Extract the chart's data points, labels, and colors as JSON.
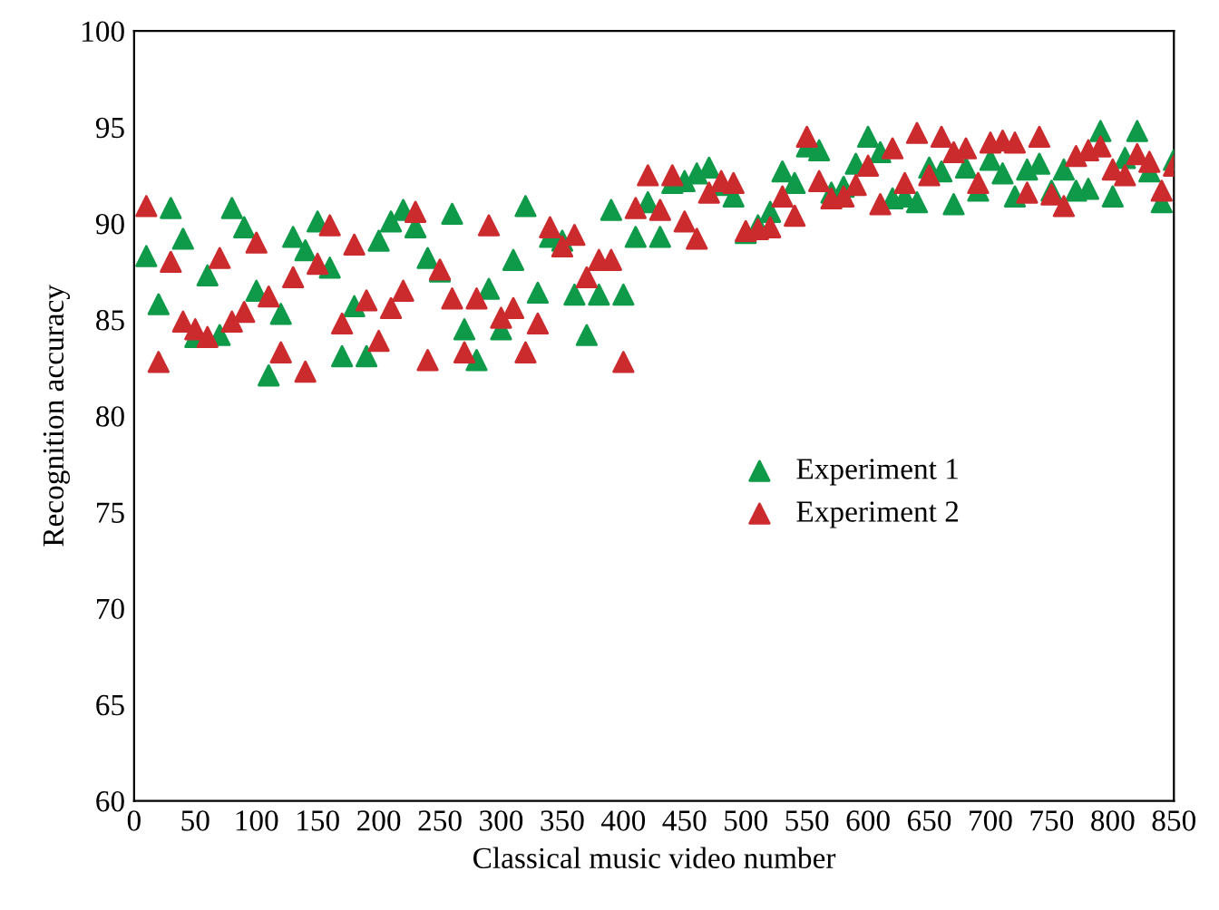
{
  "chart_data": {
    "type": "scatter",
    "xlabel": "Classical music video number",
    "ylabel": "Recognition accuracy",
    "x": [
      10,
      20,
      30,
      40,
      50,
      60,
      70,
      80,
      90,
      100,
      110,
      120,
      130,
      140,
      150,
      160,
      170,
      180,
      190,
      200,
      210,
      220,
      230,
      240,
      250,
      260,
      270,
      280,
      290,
      300,
      310,
      320,
      330,
      340,
      350,
      360,
      370,
      380,
      390,
      400,
      410,
      420,
      430,
      440,
      450,
      460,
      470,
      480,
      490,
      500,
      510,
      520,
      530,
      540,
      550,
      560,
      570,
      580,
      590,
      600,
      610,
      620,
      630,
      640,
      650,
      660,
      670,
      680,
      690,
      700,
      710,
      720,
      730,
      740,
      750,
      760,
      770,
      780,
      790,
      800,
      810,
      820,
      830,
      840,
      850
    ],
    "series": [
      {
        "name": "Experiment 1",
        "color": "#0f9a4a",
        "values": [
          88.3,
          85.8,
          90.8,
          89.2,
          84.1,
          87.3,
          84.2,
          90.8,
          89.8,
          86.5,
          82.1,
          85.3,
          89.3,
          88.6,
          90.1,
          87.7,
          83.1,
          85.7,
          83.1,
          89.1,
          90.1,
          90.7,
          89.8,
          88.2,
          87.5,
          90.5,
          84.5,
          82.9,
          86.6,
          84.5,
          88.1,
          90.9,
          86.4,
          89.3,
          89.1,
          86.3,
          84.2,
          86.3,
          90.7,
          86.3,
          89.3,
          91.1,
          89.3,
          92.1,
          92.2,
          92.6,
          92.9,
          92.0,
          91.4,
          89.5,
          89.9,
          90.6,
          92.7,
          92.1,
          94.0,
          93.8,
          91.6,
          91.9,
          93.1,
          94.5,
          93.7,
          91.3,
          91.4,
          91.1,
          92.9,
          92.7,
          91.0,
          92.9,
          91.7,
          93.3,
          92.6,
          91.4,
          92.8,
          93.1,
          91.7,
          92.8,
          91.7,
          91.8,
          94.8,
          91.4,
          93.4,
          94.8,
          92.7,
          91.1,
          93.3
        ]
      },
      {
        "name": "Experiment 2",
        "color": "#cc2b2e",
        "values": [
          90.9,
          82.8,
          88.0,
          84.9,
          84.5,
          84.1,
          88.2,
          84.9,
          85.4,
          89.0,
          86.2,
          83.3,
          87.2,
          82.3,
          87.9,
          89.9,
          84.8,
          88.9,
          86.0,
          83.9,
          85.6,
          86.5,
          90.6,
          82.9,
          87.6,
          86.1,
          83.3,
          86.1,
          89.9,
          85.1,
          85.6,
          83.3,
          84.8,
          89.8,
          88.8,
          89.4,
          87.2,
          88.1,
          88.1,
          82.8,
          90.8,
          92.5,
          90.7,
          92.5,
          90.1,
          89.2,
          91.6,
          92.2,
          92.1,
          89.6,
          89.7,
          89.8,
          91.4,
          90.4,
          94.5,
          92.2,
          91.3,
          91.4,
          92.0,
          93.0,
          91.0,
          93.9,
          92.1,
          94.7,
          92.5,
          94.5,
          93.7,
          93.9,
          92.1,
          94.2,
          94.3,
          94.2,
          91.6,
          94.5,
          91.5,
          90.9,
          93.5,
          93.8,
          94.0,
          92.8,
          92.5,
          93.6,
          93.2,
          91.7,
          93.0
        ]
      }
    ],
    "xlim": [
      0,
      850
    ],
    "xticks": [
      0,
      50,
      100,
      150,
      200,
      250,
      300,
      350,
      400,
      450,
      500,
      550,
      600,
      650,
      700,
      750,
      800,
      850
    ],
    "ylim": [
      60,
      100
    ],
    "yticks": [
      60,
      65,
      70,
      75,
      80,
      85,
      90,
      95,
      100
    ],
    "marker": "triangle",
    "grid": false,
    "legend": "center right"
  }
}
